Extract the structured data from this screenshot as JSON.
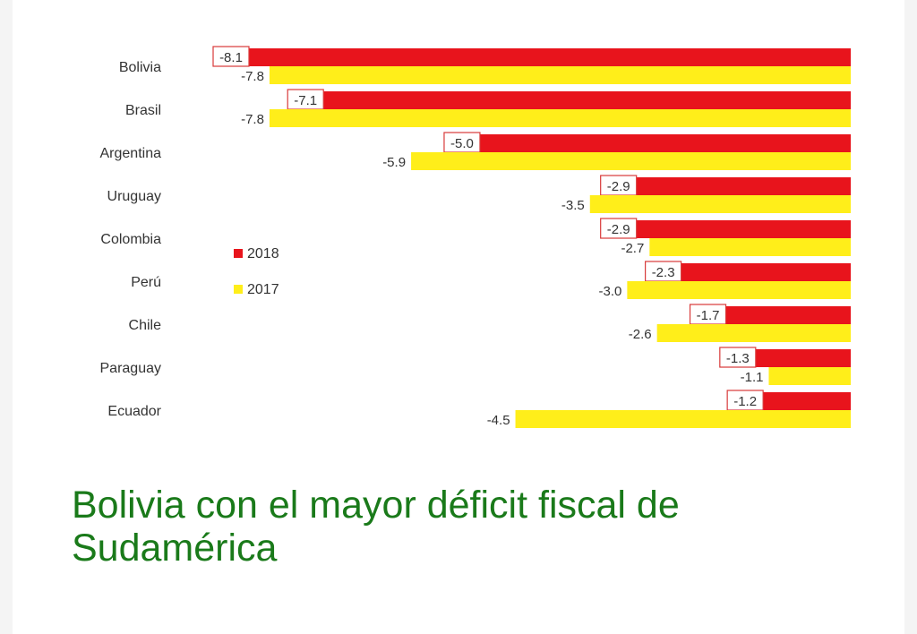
{
  "colors": {
    "series_2018": "#e8141c",
    "series_2017": "#ffee1a",
    "label_box_border": "#d83a3a",
    "headline": "#1a7a1a",
    "text": "#333333"
  },
  "headline": "Bolivia con el mayor déficit fiscal de Sudamérica",
  "chart_data": {
    "type": "bar",
    "orientation": "horizontal",
    "categories": [
      "Bolivia",
      "Brasil",
      "Argentina",
      "Uruguay",
      "Colombia",
      "Perú",
      "Chile",
      "Paraguay",
      "Ecuador"
    ],
    "series": [
      {
        "name": "2018",
        "values": [
          -8.1,
          -7.1,
          -5.0,
          -2.9,
          -2.9,
          -2.3,
          -1.7,
          -1.3,
          -1.2
        ],
        "labels": [
          "-8.1",
          "-7.1",
          "-5.0",
          "-2.9",
          "-2.9",
          "-2.3",
          "-1.7",
          "-1.3",
          "-1.2"
        ]
      },
      {
        "name": "2017",
        "values": [
          -7.8,
          -7.8,
          -5.9,
          -3.5,
          -2.7,
          -3.0,
          -2.6,
          -1.1,
          -4.5
        ],
        "labels": [
          "-7.8",
          "-7.8",
          "-5.9",
          "-3.5",
          "-2.7",
          "-3.0",
          "-2.6",
          "-1.1",
          "-4.5"
        ]
      }
    ],
    "xlim": [
      -8.1,
      0
    ],
    "legend": {
      "position": "left-middle",
      "entries": [
        "2018",
        "2017"
      ]
    },
    "grid": false
  }
}
